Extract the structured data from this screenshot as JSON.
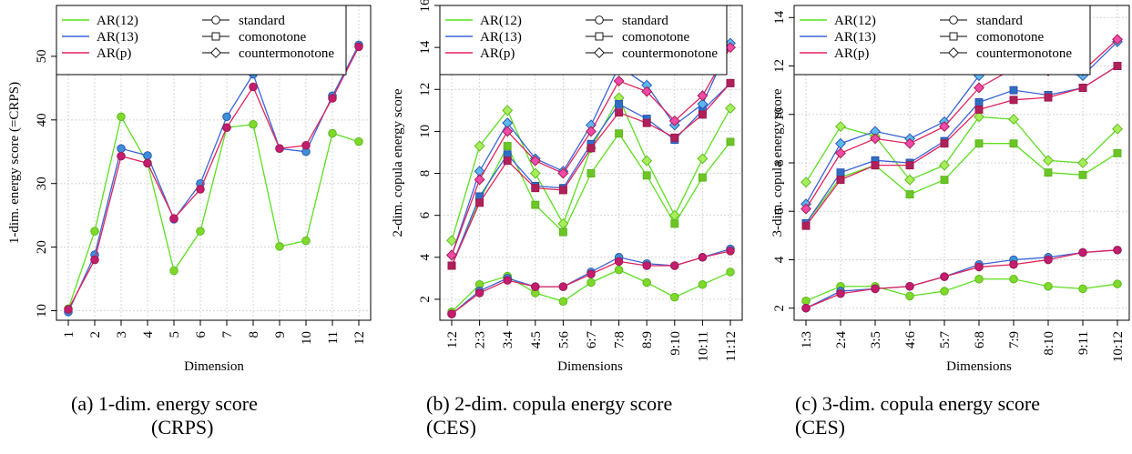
{
  "styles": {
    "colors": {
      "AR(12)": "#5ddf1f",
      "AR(13)": "#3a63d8",
      "AR(p)": "#e0245c"
    },
    "fills": {
      "AR(12)": {
        "standard": "#7fd82a",
        "comonotone": "#6cc525",
        "countermonotone": "#a8ee5a"
      },
      "AR(13)": {
        "standard": "#3d8fd6",
        "comonotone": "#2f6fc3",
        "countermonotone": "#5bb8ee"
      },
      "AR(p)": {
        "standard": "#c21d6f",
        "comonotone": "#b0205a",
        "countermonotone": "#f04aa8"
      }
    },
    "grid_color": "#d6d6d6"
  },
  "legend": {
    "models": [
      "AR(12)",
      "AR(13)",
      "AR(p)"
    ],
    "copulas": [
      "standard",
      "comonotone",
      "countermonotone"
    ],
    "copula_markers": {
      "standard": "circle",
      "comonotone": "square",
      "countermonotone": "diamond"
    }
  },
  "captions": [
    {
      "line1": "(a) 1-dim. energy score",
      "line2": "(CRPS)"
    },
    {
      "line1": "(b) 2-dim. copula energy score",
      "line2": "(CES)"
    },
    {
      "line1": "(c) 3-dim. copula energy score",
      "line2": "(CES)"
    }
  ],
  "chart_data": [
    {
      "type": "line",
      "xlabel": "Dimension",
      "ylabel": "1-dim. energy score (=CRPS)",
      "categories": [
        "1",
        "2",
        "3",
        "4",
        "5",
        "6",
        "7",
        "8",
        "9",
        "10",
        "11",
        "12"
      ],
      "ylim": [
        8.5,
        58
      ],
      "yticks": [
        10,
        20,
        30,
        40,
        50
      ],
      "grid": true,
      "legend_position": "top",
      "series": [
        {
          "name": "AR(12)",
          "values": [
            10.3,
            22.5,
            40.5,
            33.2,
            16.3,
            22.5,
            38.8,
            39.3,
            20.1,
            21.0,
            37.9,
            36.6
          ]
        },
        {
          "name": "AR(13)",
          "values": [
            9.8,
            18.8,
            35.5,
            34.4,
            24.4,
            30.0,
            40.5,
            47.2,
            35.5,
            35.0,
            43.8,
            51.8
          ]
        },
        {
          "name": "AR(p)",
          "values": [
            10.2,
            18.0,
            34.3,
            33.2,
            24.5,
            29.1,
            38.8,
            45.2,
            35.5,
            36.0,
            43.4,
            51.5
          ]
        }
      ]
    },
    {
      "type": "line",
      "xlabel": "Dimensions",
      "ylabel": "2-dim. copula energy score",
      "categories": [
        "1:2",
        "2:3",
        "3:4",
        "4:5",
        "5:6",
        "6:7",
        "7:8",
        "8:9",
        "9:10",
        "10:11",
        "11:12"
      ],
      "ylim": [
        1,
        16
      ],
      "yticks": [
        2,
        4,
        6,
        8,
        10,
        12,
        14,
        16
      ],
      "grid": true,
      "legend_position": "top",
      "series": [
        {
          "name": "AR(12)",
          "copula": "standard",
          "values": [
            1.4,
            2.7,
            3.1,
            2.3,
            1.9,
            2.8,
            3.4,
            2.8,
            2.1,
            2.7,
            3.3
          ]
        },
        {
          "name": "AR(12)",
          "copula": "comonotone",
          "values": [
            3.6,
            6.7,
            9.3,
            6.5,
            5.2,
            8.0,
            9.9,
            7.9,
            5.6,
            7.8,
            9.5
          ]
        },
        {
          "name": "AR(12)",
          "copula": "countermonotone",
          "values": [
            4.8,
            9.3,
            11.0,
            8.0,
            5.6,
            9.2,
            11.6,
            8.6,
            6.0,
            8.7,
            11.1
          ]
        },
        {
          "name": "AR(13)",
          "copula": "standard",
          "values": [
            1.3,
            2.4,
            3.0,
            2.6,
            2.6,
            3.3,
            4.0,
            3.7,
            3.6,
            4.0,
            4.4
          ]
        },
        {
          "name": "AR(13)",
          "copula": "comonotone",
          "values": [
            3.6,
            6.9,
            8.9,
            7.4,
            7.3,
            9.4,
            11.3,
            10.6,
            9.6,
            11.0,
            12.3
          ]
        },
        {
          "name": "AR(13)",
          "copula": "countermonotone",
          "values": [
            4.1,
            8.1,
            10.4,
            8.7,
            8.1,
            10.3,
            13.1,
            12.2,
            10.3,
            11.3,
            14.2
          ]
        },
        {
          "name": "AR(p)",
          "copula": "standard",
          "values": [
            1.3,
            2.3,
            2.9,
            2.6,
            2.6,
            3.2,
            3.8,
            3.6,
            3.6,
            4.0,
            4.3
          ]
        },
        {
          "name": "AR(p)",
          "copula": "comonotone",
          "values": [
            3.6,
            6.6,
            8.6,
            7.3,
            7.2,
            9.2,
            10.9,
            10.4,
            9.7,
            10.8,
            12.3
          ]
        },
        {
          "name": "AR(p)",
          "copula": "countermonotone",
          "values": [
            4.1,
            7.7,
            10.0,
            8.6,
            8.0,
            10.0,
            12.4,
            11.9,
            10.5,
            11.7,
            14.0
          ]
        }
      ]
    },
    {
      "type": "line",
      "xlabel": "Dimensions",
      "ylabel": "3-dim. copula energy score",
      "categories": [
        "1:3",
        "2:4",
        "3:5",
        "4:6",
        "5:7",
        "6:8",
        "7:9",
        "8:10",
        "9:11",
        "10:12"
      ],
      "ylim": [
        1.5,
        14.5
      ],
      "yticks": [
        2,
        4,
        6,
        8,
        10,
        12,
        14
      ],
      "grid": true,
      "legend_position": "top",
      "series": [
        {
          "name": "AR(12)",
          "copula": "standard",
          "values": [
            2.3,
            2.9,
            2.9,
            2.5,
            2.7,
            3.2,
            3.2,
            2.9,
            2.8,
            3.0
          ]
        },
        {
          "name": "AR(12)",
          "copula": "comonotone",
          "values": [
            5.5,
            7.4,
            7.9,
            6.7,
            7.3,
            8.8,
            8.8,
            7.6,
            7.5,
            8.4
          ]
        },
        {
          "name": "AR(12)",
          "copula": "countermonotone",
          "values": [
            7.2,
            9.5,
            9.1,
            7.3,
            7.9,
            9.9,
            9.8,
            8.1,
            8.0,
            9.4
          ]
        },
        {
          "name": "AR(13)",
          "copula": "standard",
          "values": [
            2.0,
            2.7,
            2.8,
            2.9,
            3.3,
            3.8,
            4.0,
            4.1,
            4.3,
            4.4
          ]
        },
        {
          "name": "AR(13)",
          "copula": "comonotone",
          "values": [
            5.5,
            7.6,
            8.1,
            8.0,
            8.9,
            10.5,
            11.0,
            10.8,
            11.1,
            12.0
          ]
        },
        {
          "name": "AR(13)",
          "copula": "countermonotone",
          "values": [
            6.3,
            8.8,
            9.3,
            9.0,
            9.7,
            11.6,
            12.3,
            11.8,
            11.6,
            13.0
          ]
        },
        {
          "name": "AR(p)",
          "copula": "standard",
          "values": [
            2.0,
            2.6,
            2.8,
            2.9,
            3.3,
            3.7,
            3.8,
            4.0,
            4.3,
            4.4
          ]
        },
        {
          "name": "AR(p)",
          "copula": "comonotone",
          "values": [
            5.4,
            7.3,
            7.9,
            7.9,
            8.8,
            10.2,
            10.6,
            10.7,
            11.1,
            12.0
          ]
        },
        {
          "name": "AR(p)",
          "copula": "countermonotone",
          "values": [
            6.1,
            8.4,
            9.0,
            8.8,
            9.5,
            11.1,
            11.9,
            11.8,
            11.8,
            13.1
          ]
        }
      ]
    }
  ]
}
